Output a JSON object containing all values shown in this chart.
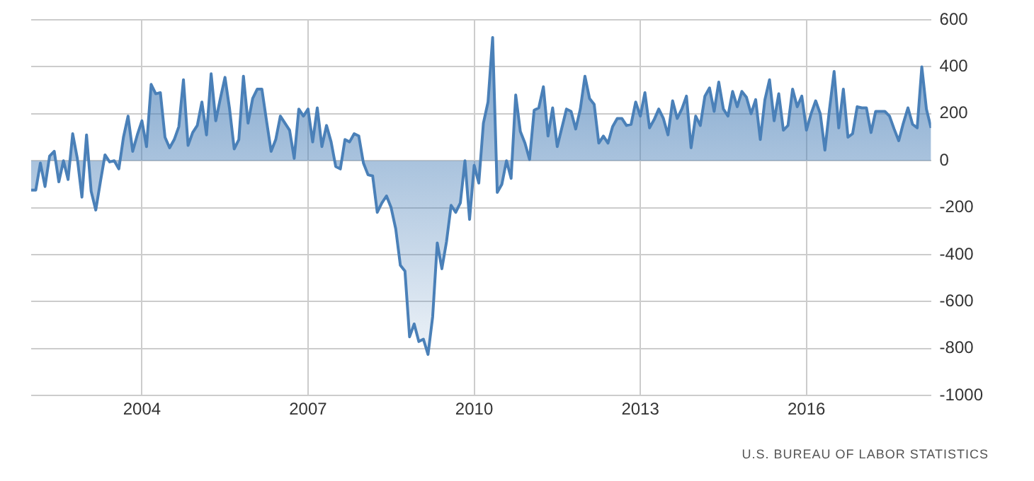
{
  "chart_data": {
    "type": "area",
    "color": "#4a80b8",
    "x": [
      "2002-01",
      "2002-02",
      "2002-03",
      "2002-04",
      "2002-05",
      "2002-06",
      "2002-07",
      "2002-08",
      "2002-09",
      "2002-10",
      "2002-11",
      "2002-12",
      "2003-01",
      "2003-02",
      "2003-03",
      "2003-04",
      "2003-05",
      "2003-06",
      "2003-07",
      "2003-08",
      "2003-09",
      "2003-10",
      "2003-11",
      "2003-12",
      "2004-01",
      "2004-02",
      "2004-03",
      "2004-04",
      "2004-05",
      "2004-06",
      "2004-07",
      "2004-08",
      "2004-09",
      "2004-10",
      "2004-11",
      "2004-12",
      "2005-01",
      "2005-02",
      "2005-03",
      "2005-04",
      "2005-05",
      "2005-06",
      "2005-07",
      "2005-08",
      "2005-09",
      "2005-10",
      "2005-11",
      "2005-12",
      "2006-01",
      "2006-02",
      "2006-03",
      "2006-04",
      "2006-05",
      "2006-06",
      "2006-07",
      "2006-08",
      "2006-09",
      "2006-10",
      "2006-11",
      "2006-12",
      "2007-01",
      "2007-02",
      "2007-03",
      "2007-04",
      "2007-05",
      "2007-06",
      "2007-07",
      "2007-08",
      "2007-09",
      "2007-10",
      "2007-11",
      "2007-12",
      "2008-01",
      "2008-02",
      "2008-03",
      "2008-04",
      "2008-05",
      "2008-06",
      "2008-07",
      "2008-08",
      "2008-09",
      "2008-10",
      "2008-11",
      "2008-12",
      "2009-01",
      "2009-02",
      "2009-03",
      "2009-04",
      "2009-05",
      "2009-06",
      "2009-07",
      "2009-08",
      "2009-09",
      "2009-10",
      "2009-11",
      "2009-12",
      "2010-01",
      "2010-02",
      "2010-03",
      "2010-04",
      "2010-05",
      "2010-06",
      "2010-07",
      "2010-08",
      "2010-09",
      "2010-10",
      "2010-11",
      "2010-12",
      "2011-01",
      "2011-02",
      "2011-03",
      "2011-04",
      "2011-05",
      "2011-06",
      "2011-07",
      "2011-08",
      "2011-09",
      "2011-10",
      "2011-11",
      "2011-12",
      "2012-01",
      "2012-02",
      "2012-03",
      "2012-04",
      "2012-05",
      "2012-06",
      "2012-07",
      "2012-08",
      "2012-09",
      "2012-10",
      "2012-11",
      "2012-12",
      "2013-01",
      "2013-02",
      "2013-03",
      "2013-04",
      "2013-05",
      "2013-06",
      "2013-07",
      "2013-08",
      "2013-09",
      "2013-10",
      "2013-11",
      "2013-12",
      "2014-01",
      "2014-02",
      "2014-03",
      "2014-04",
      "2014-05",
      "2014-06",
      "2014-07",
      "2014-08",
      "2014-09",
      "2014-10",
      "2014-11",
      "2014-12",
      "2015-01",
      "2015-02",
      "2015-03",
      "2015-04",
      "2015-05",
      "2015-06",
      "2015-07",
      "2015-08",
      "2015-09",
      "2015-10",
      "2015-11",
      "2015-12",
      "2016-01",
      "2016-02",
      "2016-03",
      "2016-04",
      "2016-05",
      "2016-06",
      "2016-07",
      "2016-08",
      "2016-09",
      "2016-10",
      "2016-11",
      "2016-12",
      "2017-01",
      "2017-02",
      "2017-03",
      "2017-04",
      "2017-05",
      "2017-06",
      "2017-07",
      "2017-08",
      "2017-09",
      "2017-10",
      "2017-11",
      "2017-12",
      "2018-01",
      "2018-02",
      "2018-03",
      "2018-04"
    ],
    "values": [
      -125,
      -125,
      -10,
      -110,
      20,
      40,
      -90,
      0,
      -80,
      115,
      10,
      -155,
      110,
      -130,
      -210,
      -90,
      25,
      -5,
      0,
      -35,
      100,
      190,
      40,
      110,
      170,
      60,
      325,
      285,
      290,
      100,
      55,
      90,
      145,
      345,
      65,
      120,
      150,
      250,
      110,
      370,
      170,
      265,
      355,
      220,
      50,
      90,
      360,
      160,
      265,
      305,
      305,
      170,
      40,
      90,
      190,
      160,
      130,
      10,
      220,
      190,
      220,
      80,
      225,
      60,
      150,
      80,
      -25,
      -35,
      90,
      80,
      115,
      105,
      -10,
      -60,
      -65,
      -220,
      -180,
      -150,
      -200,
      -290,
      -445,
      -470,
      -750,
      -695,
      -770,
      -760,
      -825,
      -665,
      -350,
      -460,
      -345,
      -190,
      -220,
      -180,
      0,
      -250,
      -20,
      -95,
      160,
      250,
      525,
      -135,
      -100,
      0,
      -75,
      280,
      125,
      75,
      5,
      215,
      225,
      315,
      105,
      225,
      60,
      140,
      220,
      210,
      135,
      220,
      360,
      265,
      240,
      75,
      105,
      75,
      145,
      180,
      180,
      150,
      155,
      250,
      190,
      290,
      140,
      175,
      220,
      180,
      110,
      255,
      180,
      220,
      275,
      55,
      190,
      150,
      275,
      310,
      210,
      335,
      220,
      190,
      295,
      230,
      295,
      270,
      200,
      260,
      90,
      260,
      345,
      170,
      285,
      130,
      150,
      305,
      230,
      275,
      130,
      200,
      255,
      200,
      45,
      220,
      380,
      140,
      305,
      100,
      115,
      230,
      225,
      225,
      120,
      210,
      210,
      210,
      190,
      135,
      85,
      160,
      225,
      155,
      140,
      400,
      220,
      140
    ],
    "xlim": [
      "2002-01",
      "2018-04"
    ],
    "xticks": [
      "2004",
      "2007",
      "2010",
      "2013",
      "2016"
    ],
    "ylim": [
      -1000,
      600
    ],
    "yticks": [
      -1000,
      -800,
      -600,
      -400,
      -200,
      0,
      200,
      400,
      600
    ],
    "grid": true,
    "legend": false,
    "annotations": [
      "U.S. BUREAU OF LABOR STATISTICS"
    ]
  }
}
